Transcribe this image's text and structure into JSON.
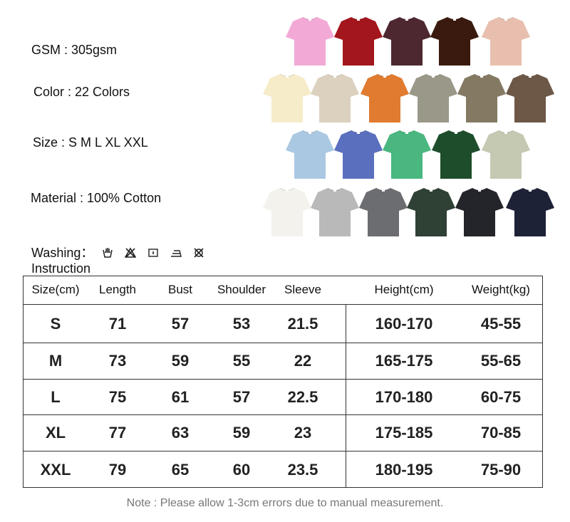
{
  "specs": {
    "gsm": "GSM : 305gsm",
    "color": "Color : 22 Colors",
    "size": "Size : S M L XL XXL",
    "material": "Material : 100% Cotton"
  },
  "washing": {
    "label_line1": "Washing：",
    "label_line2": "Instruction",
    "icons": [
      "hand-wash-icon",
      "do-not-bleach-icon",
      "tumble-dry-icon",
      "iron-icon",
      "do-not-dry-clean-icon"
    ]
  },
  "swatch_rows": [
    [
      "#f2a9d6",
      "#a3161d",
      "#4e2830",
      "#3a1a0e",
      "#e8bfae"
    ],
    [
      "#f6ecc9",
      "#dcd1bf",
      "#e07b2f",
      "#9a9888",
      "#847a63",
      "#6d5747"
    ],
    [
      "#aac8e2",
      "#5b6fbf",
      "#49b77f",
      "#1e4d2c",
      "#c6c9b2"
    ],
    [
      "#f4f2ec",
      "#b9b9b9",
      "#6b6d70",
      "#2f4034",
      "#23252a",
      "#1d2237"
    ]
  ],
  "table": {
    "headers": [
      "Size(cm)",
      "Length",
      "Bust",
      "Shoulder",
      "Sleeve",
      "Height(cm)",
      "Weight(kg)"
    ],
    "rows": [
      [
        "S",
        "71",
        "57",
        "53",
        "21.5",
        "160-170",
        "45-55"
      ],
      [
        "M",
        "73",
        "59",
        "55",
        "22",
        "165-175",
        "55-65"
      ],
      [
        "L",
        "75",
        "61",
        "57",
        "22.5",
        "170-180",
        "60-75"
      ],
      [
        "XL",
        "77",
        "63",
        "59",
        "23",
        "175-185",
        "70-85"
      ],
      [
        "XXL",
        "79",
        "65",
        "60",
        "23.5",
        "180-195",
        "75-90"
      ]
    ]
  },
  "note": "Note : Please allow 1-3cm errors due to manual measurement."
}
